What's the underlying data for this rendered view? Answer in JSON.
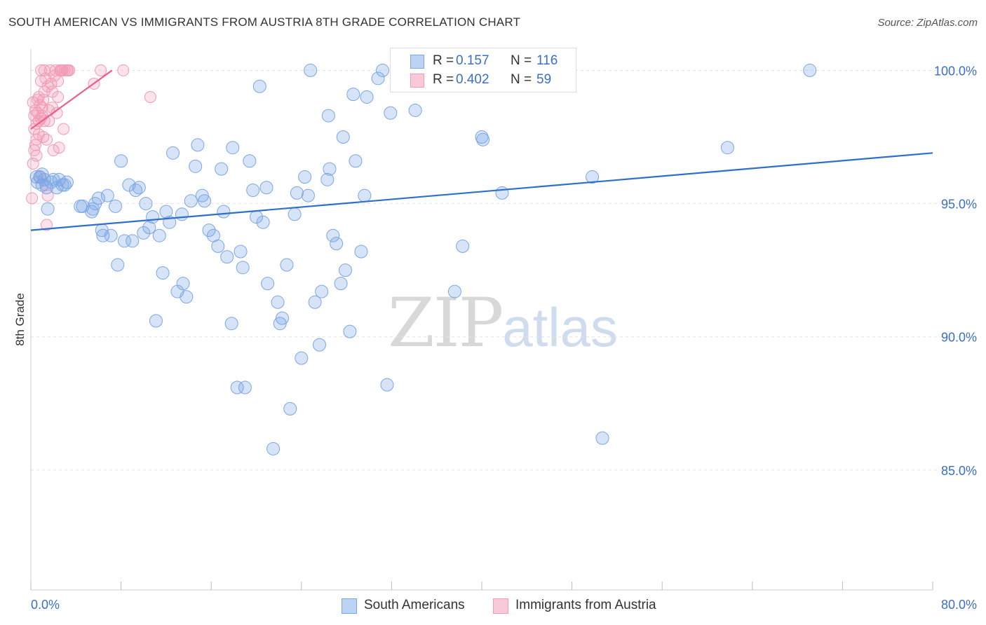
{
  "title": "SOUTH AMERICAN VS IMMIGRANTS FROM AUSTRIA 8TH GRADE CORRELATION CHART",
  "source": "Source: ZipAtlas.com",
  "watermark": {
    "zip": "ZIP",
    "atlas": "atlas"
  },
  "legend_top": {
    "rows": [
      {
        "r_label": "R =",
        "r_value": "0.157",
        "n_label": "N =",
        "n_value": "116",
        "color": "#7aa6e6"
      },
      {
        "r_label": "R =",
        "r_value": "0.402",
        "n_label": "N =",
        "n_value": "59",
        "color": "#f29ab6"
      }
    ]
  },
  "legend_bottom": {
    "items": [
      {
        "label": "South Americans",
        "color": "#7aa6e6"
      },
      {
        "label": "Immigrants from Austria",
        "color": "#f29ab6"
      }
    ]
  },
  "chart_data": {
    "type": "scatter",
    "title": "SOUTH AMERICAN VS IMMIGRANTS FROM AUSTRIA 8TH GRADE CORRELATION CHART",
    "xlabel": "",
    "ylabel": "8th Grade",
    "xlim": [
      0,
      80
    ],
    "ylim": [
      80.5,
      100.8
    ],
    "x_tick_labels": [
      "0.0%",
      "80.0%"
    ],
    "y_ticks": [
      85,
      90,
      95,
      100
    ],
    "y_tick_labels": [
      "85.0%",
      "90.0%",
      "95.0%",
      "100.0%"
    ],
    "grid": true,
    "legend_position": "top-center",
    "colors": {
      "blue": "#7aa6e6",
      "blue_line": "#2f6fcc",
      "pink": "#f29ab6",
      "pink_line": "#e8608e"
    },
    "series": [
      {
        "name": "South Americans",
        "r": 0.157,
        "n": 116,
        "trend": {
          "x": [
            0,
            80
          ],
          "y": [
            94.0,
            96.9
          ]
        },
        "points": [
          [
            0.5,
            96.0
          ],
          [
            0.6,
            95.8
          ],
          [
            0.8,
            96.0
          ],
          [
            1.0,
            95.7
          ],
          [
            1.2,
            95.9
          ],
          [
            1.4,
            95.6
          ],
          [
            1.5,
            94.8
          ],
          [
            1.8,
            95.8
          ],
          [
            2.3,
            95.6
          ],
          [
            2.5,
            95.9
          ],
          [
            2.8,
            95.7
          ],
          [
            3.2,
            95.8
          ],
          [
            3.0,
            95.7
          ],
          [
            4.4,
            94.9
          ],
          [
            4.6,
            94.9
          ],
          [
            5.4,
            94.7
          ],
          [
            5.5,
            94.8
          ],
          [
            5.7,
            95.0
          ],
          [
            6.3,
            94.0
          ],
          [
            6.4,
            93.8
          ],
          [
            6.8,
            95.3
          ],
          [
            7.1,
            93.8
          ],
          [
            7.5,
            94.9
          ],
          [
            7.7,
            92.7
          ],
          [
            8.0,
            96.6
          ],
          [
            8.3,
            93.6
          ],
          [
            8.7,
            95.7
          ],
          [
            9.0,
            93.6
          ],
          [
            9.3,
            95.5
          ],
          [
            9.6,
            95.6
          ],
          [
            10.0,
            93.9
          ],
          [
            10.2,
            95.0
          ],
          [
            10.5,
            94.1
          ],
          [
            10.8,
            94.5
          ],
          [
            11.1,
            90.6
          ],
          [
            11.4,
            93.8
          ],
          [
            11.7,
            92.4
          ],
          [
            12.0,
            94.7
          ],
          [
            12.3,
            94.3
          ],
          [
            12.6,
            96.9
          ],
          [
            13.0,
            91.7
          ],
          [
            13.5,
            92.0
          ],
          [
            13.8,
            91.5
          ],
          [
            14.2,
            95.1
          ],
          [
            14.6,
            96.4
          ],
          [
            14.8,
            97.2
          ],
          [
            15.2,
            95.3
          ],
          [
            15.4,
            95.1
          ],
          [
            15.8,
            94.0
          ],
          [
            16.2,
            93.8
          ],
          [
            16.6,
            93.4
          ],
          [
            16.9,
            96.3
          ],
          [
            17.1,
            94.7
          ],
          [
            17.4,
            93.0
          ],
          [
            17.8,
            90.5
          ],
          [
            17.9,
            97.1
          ],
          [
            18.3,
            88.1
          ],
          [
            18.6,
            93.2
          ],
          [
            18.8,
            92.6
          ],
          [
            19.0,
            88.1
          ],
          [
            19.4,
            96.6
          ],
          [
            19.7,
            95.5
          ],
          [
            20.0,
            94.5
          ],
          [
            20.3,
            99.4
          ],
          [
            20.6,
            94.3
          ],
          [
            20.9,
            95.6
          ],
          [
            21.5,
            85.8
          ],
          [
            21.9,
            91.3
          ],
          [
            22.1,
            90.5
          ],
          [
            22.3,
            90.7
          ],
          [
            22.7,
            92.7
          ],
          [
            23.0,
            87.3
          ],
          [
            23.4,
            94.6
          ],
          [
            23.6,
            95.4
          ],
          [
            24.0,
            89.2
          ],
          [
            24.3,
            96.0
          ],
          [
            24.6,
            95.3
          ],
          [
            24.8,
            100.0
          ],
          [
            25.2,
            91.3
          ],
          [
            25.6,
            89.7
          ],
          [
            25.8,
            91.7
          ],
          [
            26.3,
            95.9
          ],
          [
            26.4,
            98.3
          ],
          [
            26.8,
            93.8
          ],
          [
            27.1,
            93.5
          ],
          [
            27.5,
            92.0
          ],
          [
            27.7,
            97.5
          ],
          [
            27.9,
            92.5
          ],
          [
            28.3,
            90.2
          ],
          [
            28.6,
            99.1
          ],
          [
            28.8,
            96.6
          ],
          [
            29.3,
            93.2
          ],
          [
            29.6,
            95.3
          ],
          [
            29.8,
            99.0
          ],
          [
            30.8,
            99.7
          ],
          [
            31.2,
            100.0
          ],
          [
            31.6,
            88.2
          ],
          [
            31.9,
            98.4
          ],
          [
            33.0,
            100.0
          ],
          [
            34.1,
            98.5
          ],
          [
            34.8,
            100.0
          ],
          [
            37.6,
            91.7
          ],
          [
            38.3,
            93.4
          ],
          [
            40.0,
            97.5
          ],
          [
            40.1,
            97.4
          ],
          [
            41.8,
            95.4
          ],
          [
            49.8,
            96.0
          ],
          [
            50.7,
            86.2
          ],
          [
            61.8,
            97.1
          ],
          [
            69.1,
            100.0
          ],
          [
            1.0,
            96.1
          ],
          [
            2.0,
            95.9
          ],
          [
            6.0,
            95.2
          ],
          [
            13.4,
            94.6
          ],
          [
            26.5,
            96.3
          ],
          [
            21.0,
            92.0
          ]
        ]
      },
      {
        "name": "Immigrants from Austria",
        "r": 0.402,
        "n": 59,
        "trend": {
          "x": [
            0,
            7.2
          ],
          "y": [
            97.8,
            100.0
          ]
        },
        "points": [
          [
            0.1,
            95.2
          ],
          [
            0.2,
            96.5
          ],
          [
            0.3,
            97.0
          ],
          [
            0.3,
            97.8
          ],
          [
            0.4,
            98.5
          ],
          [
            0.5,
            98.0
          ],
          [
            0.5,
            96.8
          ],
          [
            0.6,
            98.4
          ],
          [
            0.7,
            99.0
          ],
          [
            0.7,
            97.6
          ],
          [
            0.8,
            98.7
          ],
          [
            0.9,
            98.2
          ],
          [
            0.9,
            99.6
          ],
          [
            1.0,
            98.6
          ],
          [
            1.1,
            98.9
          ],
          [
            1.2,
            100.0
          ],
          [
            1.2,
            98.1
          ],
          [
            1.3,
            99.7
          ],
          [
            1.3,
            95.7
          ],
          [
            1.4,
            94.2
          ],
          [
            1.4,
            97.4
          ],
          [
            1.5,
            99.4
          ],
          [
            1.5,
            95.3
          ],
          [
            1.6,
            98.5
          ],
          [
            1.7,
            100.0
          ],
          [
            1.8,
            99.5
          ],
          [
            1.9,
            98.6
          ],
          [
            2.0,
            97.0
          ],
          [
            2.1,
            99.8
          ],
          [
            2.2,
            100.0
          ],
          [
            2.3,
            98.4
          ],
          [
            2.4,
            99.0
          ],
          [
            2.5,
            97.1
          ],
          [
            2.6,
            100.0
          ],
          [
            2.7,
            100.0
          ],
          [
            2.8,
            100.0
          ],
          [
            2.9,
            97.8
          ],
          [
            3.0,
            100.0
          ],
          [
            3.2,
            100.0
          ],
          [
            3.4,
            100.0
          ],
          [
            5.6,
            99.5
          ],
          [
            6.2,
            100.0
          ],
          [
            8.2,
            100.0
          ],
          [
            10.6,
            99.0
          ],
          [
            0.2,
            98.8
          ],
          [
            0.4,
            97.2
          ],
          [
            0.6,
            98.9
          ],
          [
            0.8,
            96.0
          ],
          [
            1.0,
            98.3
          ],
          [
            1.1,
            97.5
          ],
          [
            1.6,
            98.1
          ],
          [
            0.3,
            98.3
          ],
          [
            0.9,
            100.0
          ],
          [
            1.9,
            99.2
          ],
          [
            2.4,
            99.6
          ],
          [
            0.5,
            97.4
          ],
          [
            1.2,
            99.2
          ],
          [
            0.7,
            98.1
          ],
          [
            3.3,
            100.0
          ]
        ]
      }
    ]
  }
}
